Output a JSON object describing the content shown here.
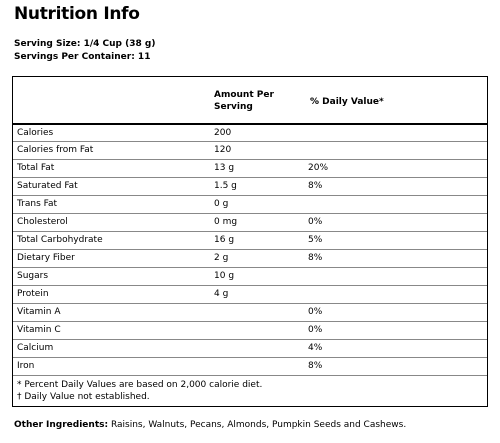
{
  "title": "Nutrition Info",
  "serving": {
    "size_label": "Serving Size: 1/4 Cup (38 g)",
    "servings_label": "Servings Per Container: 11"
  },
  "table": {
    "header_amount": "Amount Per",
    "header_amount2": "Serving",
    "header_daily": "% Daily Value*",
    "rows": [
      {
        "name": "Calories",
        "amount": "200",
        "dv": ""
      },
      {
        "name": "Calories from Fat",
        "amount": "120",
        "dv": ""
      },
      {
        "name": "Total Fat",
        "amount": "13 g",
        "dv": "20%"
      },
      {
        "name": "Saturated Fat",
        "amount": "1.5 g",
        "dv": "8%"
      },
      {
        "name": "Trans Fat",
        "amount": "0 g",
        "dv": ""
      },
      {
        "name": "Cholesterol",
        "amount": "0 mg",
        "dv": "0%"
      },
      {
        "name": "Total Carbohydrate",
        "amount": "16 g",
        "dv": "5%"
      },
      {
        "name": "Dietary Fiber",
        "amount": "2 g",
        "dv": "8%"
      },
      {
        "name": "Sugars",
        "amount": "10 g",
        "dv": ""
      },
      {
        "name": "Protein",
        "amount": "4 g",
        "dv": ""
      },
      {
        "name": "Vitamin A",
        "amount": "",
        "dv": "0%"
      },
      {
        "name": "Vitamin C",
        "amount": "",
        "dv": "0%"
      },
      {
        "name": "Calcium",
        "amount": "",
        "dv": "4%"
      },
      {
        "name": "Iron",
        "amount": "",
        "dv": "8%"
      }
    ],
    "footnote1": "* Percent Daily Values are based on 2,000 calorie diet.",
    "footnote2": "† Daily Value not established."
  },
  "other": {
    "label": "Other Ingredients:",
    "value": " Raisins, Walnuts, Pecans, Almonds, Pumpkin Seeds and Cashews."
  }
}
